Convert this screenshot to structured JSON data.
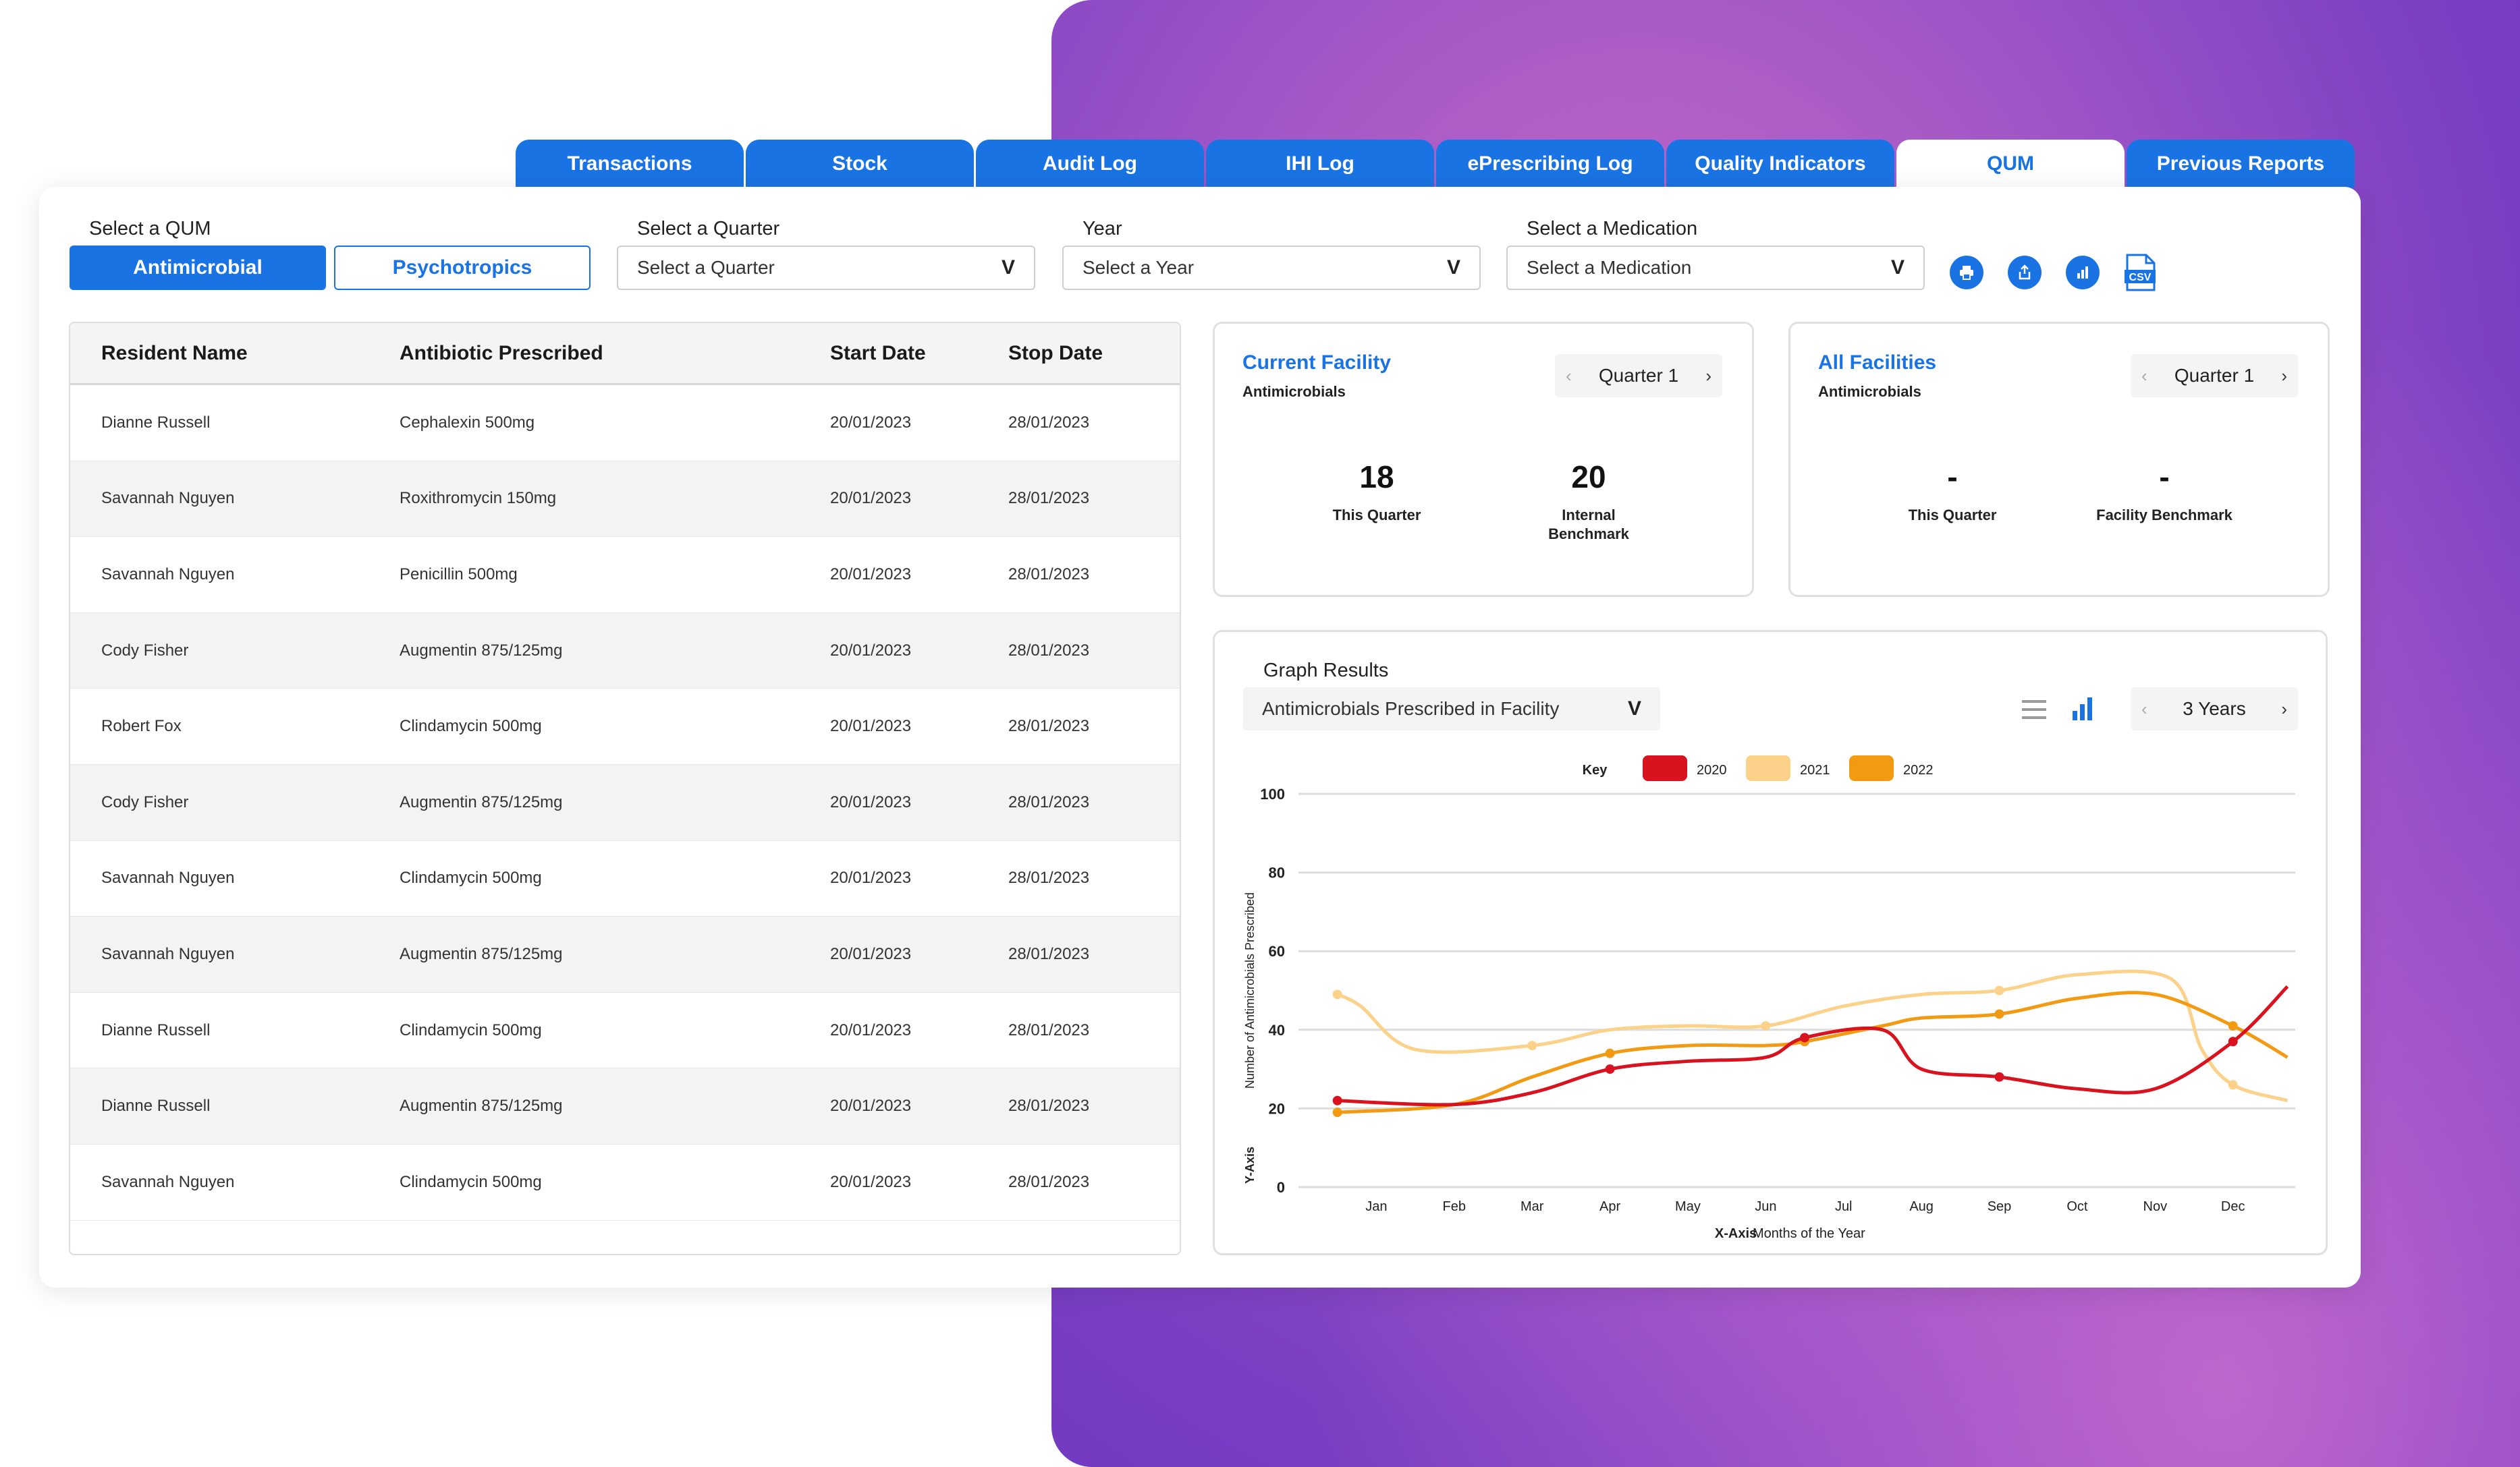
{
  "tabs": [
    "Transactions",
    "Stock",
    "Audit Log",
    "IHI Log",
    "ePrescribing Log",
    "Quality Indicators",
    "QUM",
    "Previous Reports"
  ],
  "active_tab": "QUM",
  "filters": {
    "qum_label": "Select a QUM",
    "qum_options": [
      "Antimicrobial",
      "Psychotropics"
    ],
    "quarter_label": "Select a Quarter",
    "quarter_placeholder": "Select a Quarter",
    "year_label": "Year",
    "year_placeholder": "Select a Year",
    "medication_label": "Select a Medication",
    "medication_placeholder": "Select a Medication",
    "chevron": "V"
  },
  "toolbar_icons": [
    "print-icon",
    "share-icon",
    "bar-chart-icon",
    "csv-icon"
  ],
  "toolbar_csv_text": "CSV",
  "table": {
    "headers": [
      "Resident Name",
      "Antibiotic Prescribed",
      "Start Date",
      "Stop Date"
    ],
    "rows": [
      [
        "Dianne Russell",
        "Cephalexin 500mg",
        "20/01/2023",
        "28/01/2023"
      ],
      [
        "Savannah Nguyen",
        "Roxithromycin 150mg",
        "20/01/2023",
        "28/01/2023"
      ],
      [
        "Savannah Nguyen",
        "Penicillin 500mg",
        "20/01/2023",
        "28/01/2023"
      ],
      [
        "Cody Fisher",
        "Augmentin 875/125mg",
        "20/01/2023",
        "28/01/2023"
      ],
      [
        "Robert Fox",
        "Clindamycin 500mg",
        "20/01/2023",
        "28/01/2023"
      ],
      [
        "Cody Fisher",
        "Augmentin 875/125mg",
        "20/01/2023",
        "28/01/2023"
      ],
      [
        "Savannah Nguyen",
        "Clindamycin 500mg",
        "20/01/2023",
        "28/01/2023"
      ],
      [
        "Savannah Nguyen",
        "Augmentin 875/125mg",
        "20/01/2023",
        "28/01/2023"
      ],
      [
        "Dianne Russell",
        "Clindamycin 500mg",
        "20/01/2023",
        "28/01/2023"
      ],
      [
        "Dianne Russell",
        "Augmentin 875/125mg",
        "20/01/2023",
        "28/01/2023"
      ],
      [
        "Savannah Nguyen",
        "Clindamycin 500mg",
        "20/01/2023",
        "28/01/2023"
      ]
    ]
  },
  "current_facility": {
    "title": "Current Facility",
    "subtitle": "Antimicrobials",
    "quarter": "Quarter 1",
    "stats": [
      {
        "value": "18",
        "label": "This Quarter"
      },
      {
        "value": "20",
        "label": "Internal Benchmark"
      }
    ]
  },
  "all_facilities": {
    "title": "All Facilities",
    "subtitle": "Antimicrobials",
    "quarter": "Quarter 1",
    "stats": [
      {
        "value": "-",
        "label": "This Quarter"
      },
      {
        "value": "-",
        "label": "Facility Benchmark"
      }
    ]
  },
  "graph": {
    "title": "Graph Results",
    "select_value": "Antimicrobials Prescribed in Facility",
    "range": "3 Years",
    "key_label": "Key",
    "x_axis_tag": "X-Axis",
    "y_axis_tag": "Y-Axis"
  },
  "colors": {
    "accent": "#1a73e3",
    "s2020": "#d8121f",
    "s2021": "#fcd28a",
    "s2022": "#f29b12"
  },
  "chart_data": {
    "type": "line",
    "title": "",
    "xlabel": "Months of the Year",
    "ylabel": "Number of Antimicrobials Prescribed",
    "categories": [
      "Jan",
      "Feb",
      "Mar",
      "Apr",
      "May",
      "Jun",
      "Jul",
      "Aug",
      "Sep",
      "Oct",
      "Nov",
      "Dec"
    ],
    "ylim": [
      0,
      100
    ],
    "yticks": [
      0,
      20,
      40,
      60,
      80,
      100
    ],
    "grid": true,
    "legend": "top",
    "series": [
      {
        "name": "2020",
        "color": "#d8121f",
        "x": [
          0.5,
          2.0,
          3.0,
          4.0,
          5.0,
          6.0,
          6.5,
          7.5,
          8.0,
          9.0,
          10.0,
          11.0,
          12.0,
          12.7
        ],
        "values": [
          22,
          21,
          24,
          30,
          32,
          33,
          38,
          40,
          30,
          28,
          25,
          25,
          37,
          51
        ],
        "dots": [
          0,
          3,
          6,
          9,
          12
        ]
      },
      {
        "name": "2021",
        "color": "#fcd28a",
        "x": [
          0.5,
          0.8,
          1.5,
          3.0,
          4.0,
          5.0,
          6.0,
          7.0,
          8.0,
          9.0,
          10.0,
          11.2,
          11.6,
          12.0,
          12.7
        ],
        "values": [
          49,
          46,
          35,
          36,
          40,
          41,
          41,
          46,
          49,
          50,
          54,
          53,
          35,
          26,
          22
        ],
        "dots": [
          0,
          3,
          6,
          9,
          13
        ]
      },
      {
        "name": "2022",
        "color": "#f29b12",
        "x": [
          0.5,
          2.0,
          3.0,
          4.0,
          5.0,
          6.0,
          6.5,
          7.5,
          8.0,
          9.0,
          10.0,
          11.0,
          12.0,
          12.7
        ],
        "values": [
          19,
          21,
          28,
          34,
          36,
          36,
          37,
          41,
          43,
          44,
          48,
          49,
          41,
          33
        ],
        "dots": [
          0,
          3,
          6,
          9,
          12
        ]
      }
    ]
  }
}
